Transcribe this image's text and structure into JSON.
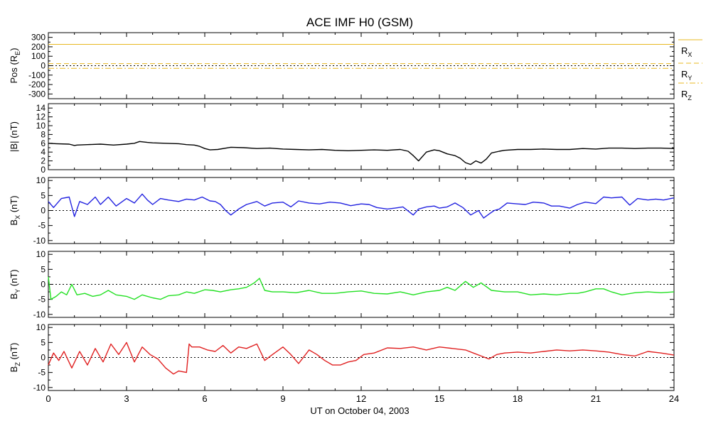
{
  "figure": {
    "title": "ACE IMF H0 (GSM)",
    "xlabel": "UT on October 04, 2003"
  },
  "chart_data": [
    {
      "type": "line",
      "panel": "position",
      "ylabel": "Pos (R",
      "ylabel_sub": "E",
      "ylabel_tail": ")",
      "ylim": [
        -350,
        350
      ],
      "yticks": [
        -300,
        -200,
        -100,
        0,
        100,
        200,
        300
      ],
      "xlim": [
        0,
        24
      ],
      "series": [
        {
          "name": "R",
          "sub": "X",
          "color": "#e8b820",
          "dash": "solid",
          "x": [
            0,
            24
          ],
          "values": [
            226,
            226
          ]
        },
        {
          "name": "R",
          "sub": "Y",
          "color": "#e8b820",
          "dash": "dashed",
          "x": [
            0,
            24
          ],
          "values": [
            22,
            22
          ]
        },
        {
          "name": "R",
          "sub": "Z",
          "color": "#e8b820",
          "dash": "dashdot",
          "x": [
            0,
            24
          ],
          "values": [
            -28,
            -28
          ]
        }
      ],
      "zero_line": true,
      "legend": "right"
    },
    {
      "type": "line",
      "panel": "Bmag",
      "ylabel": "|B| (nT)",
      "ylim": [
        0,
        15
      ],
      "yticks": [
        0,
        2,
        4,
        6,
        8,
        10,
        12,
        14
      ],
      "xlim": [
        0,
        24
      ],
      "series": [
        {
          "color": "#000000",
          "x": [
            0,
            0.3,
            0.8,
            1.0,
            1.1,
            1.5,
            2.0,
            2.5,
            3.0,
            3.3,
            3.5,
            3.8,
            4.0,
            4.5,
            5.0,
            5.3,
            5.6,
            5.8,
            6.0,
            6.2,
            6.5,
            7.0,
            7.5,
            8.0,
            8.5,
            9.0,
            9.5,
            10.0,
            10.5,
            11.0,
            11.5,
            12.0,
            12.5,
            13.0,
            13.5,
            13.8,
            14.0,
            14.2,
            14.5,
            14.8,
            15.0,
            15.3,
            15.6,
            15.8,
            16.0,
            16.2,
            16.4,
            16.6,
            16.8,
            17.0,
            17.3,
            17.5,
            18.0,
            18.5,
            19.0,
            19.5,
            20.0,
            20.5,
            21.0,
            21.5,
            22.0,
            22.5,
            23.0,
            23.5,
            24.0
          ],
          "values": [
            6.0,
            5.9,
            5.8,
            5.5,
            5.6,
            5.7,
            5.8,
            5.6,
            5.8,
            6.0,
            6.4,
            6.2,
            6.1,
            6.0,
            5.9,
            5.7,
            5.6,
            5.3,
            4.8,
            4.5,
            4.6,
            5.1,
            5.0,
            4.8,
            4.9,
            4.7,
            4.6,
            4.5,
            4.6,
            4.4,
            4.3,
            4.4,
            4.5,
            4.4,
            4.6,
            4.2,
            3.2,
            2.0,
            4.0,
            4.5,
            4.3,
            3.6,
            3.2,
            2.6,
            1.6,
            1.2,
            2.0,
            1.5,
            2.4,
            3.8,
            4.2,
            4.4,
            4.6,
            4.6,
            4.7,
            4.6,
            4.6,
            4.8,
            4.7,
            4.9,
            4.9,
            4.8,
            4.9,
            4.9,
            4.8
          ]
        }
      ]
    },
    {
      "type": "line",
      "panel": "Bx",
      "ylabel": "B",
      "ylabel_sub": "X",
      "ylabel_tail": " (nT)",
      "ylim": [
        -11,
        11
      ],
      "yticks": [
        -10,
        -5,
        0,
        5,
        10
      ],
      "xlim": [
        0,
        24
      ],
      "series": [
        {
          "color": "#2222e0",
          "x": [
            0,
            0.2,
            0.5,
            0.8,
            1.0,
            1.2,
            1.5,
            1.8,
            2.0,
            2.3,
            2.6,
            3.0,
            3.3,
            3.6,
            3.8,
            4.0,
            4.3,
            4.6,
            5.0,
            5.3,
            5.6,
            5.9,
            6.2,
            6.4,
            6.6,
            6.8,
            7.0,
            7.3,
            7.6,
            8.0,
            8.3,
            8.6,
            9.0,
            9.3,
            9.6,
            10.0,
            10.4,
            10.8,
            11.2,
            11.6,
            12.0,
            12.3,
            12.6,
            13.0,
            13.3,
            13.6,
            14.0,
            14.2,
            14.5,
            14.8,
            15.0,
            15.3,
            15.6,
            15.9,
            16.2,
            16.5,
            16.7,
            16.9,
            17.1,
            17.3,
            17.6,
            18.0,
            18.3,
            18.6,
            19.0,
            19.3,
            19.6,
            20.0,
            20.3,
            20.6,
            21.0,
            21.3,
            21.6,
            22.0,
            22.3,
            22.6,
            23.0,
            23.3,
            23.6,
            24.0
          ],
          "values": [
            3.0,
            1.0,
            4.0,
            4.5,
            -2.0,
            3.0,
            2.0,
            4.5,
            2.0,
            4.5,
            1.5,
            4.0,
            2.5,
            5.5,
            3.5,
            2.0,
            4.0,
            3.5,
            3.0,
            3.8,
            3.5,
            4.5,
            3.2,
            3.0,
            2.0,
            0.0,
            -1.5,
            0.5,
            2.0,
            3.0,
            1.5,
            2.5,
            2.8,
            1.2,
            3.2,
            2.5,
            2.2,
            2.8,
            2.5,
            1.6,
            2.2,
            2.0,
            1.0,
            0.5,
            0.8,
            1.2,
            -1.5,
            0.5,
            1.2,
            1.5,
            0.8,
            1.2,
            2.5,
            1.0,
            -1.5,
            0.0,
            -2.5,
            -1.2,
            0.0,
            0.5,
            2.5,
            2.2,
            2.0,
            2.8,
            2.5,
            1.5,
            1.5,
            0.8,
            2.0,
            2.8,
            2.3,
            4.5,
            4.2,
            4.5,
            1.8,
            4.0,
            3.5,
            3.8,
            3.5,
            4.2
          ]
        }
      ],
      "zero_line": true
    },
    {
      "type": "line",
      "panel": "By",
      "ylabel": "B",
      "ylabel_sub": "Y",
      "ylabel_tail": " (nT)",
      "ylim": [
        -11,
        11
      ],
      "yticks": [
        -10,
        -5,
        0,
        5,
        10
      ],
      "xlim": [
        0,
        24
      ],
      "series": [
        {
          "color": "#22e022",
          "x": [
            0,
            0.1,
            0.3,
            0.5,
            0.7,
            0.9,
            1.1,
            1.4,
            1.7,
            2.0,
            2.3,
            2.6,
            3.0,
            3.3,
            3.6,
            4.0,
            4.3,
            4.6,
            5.0,
            5.3,
            5.6,
            6.0,
            6.3,
            6.6,
            7.0,
            7.3,
            7.6,
            7.9,
            8.1,
            8.3,
            8.6,
            9.0,
            9.5,
            10.0,
            10.5,
            11.0,
            11.5,
            12.0,
            12.5,
            13.0,
            13.5,
            14.0,
            14.5,
            15.0,
            15.3,
            15.6,
            16.0,
            16.3,
            16.6,
            17.0,
            17.5,
            18.0,
            18.5,
            19.0,
            19.5,
            20.0,
            20.3,
            20.6,
            21.0,
            21.3,
            21.6,
            22.0,
            22.5,
            23.0,
            23.5,
            24.0
          ],
          "values": [
            2.5,
            -5.0,
            -4.0,
            -2.5,
            -3.5,
            0.0,
            -3.5,
            -3.0,
            -4.0,
            -3.5,
            -2.0,
            -3.5,
            -4.0,
            -5.0,
            -3.5,
            -4.5,
            -5.0,
            -3.8,
            -3.5,
            -2.5,
            -3.0,
            -1.8,
            -2.0,
            -2.5,
            -1.8,
            -1.5,
            -1.0,
            0.5,
            2.0,
            -2.0,
            -2.5,
            -2.5,
            -2.8,
            -2.0,
            -3.0,
            -3.0,
            -2.5,
            -2.2,
            -3.0,
            -3.2,
            -2.5,
            -3.5,
            -2.5,
            -2.0,
            -1.0,
            -2.0,
            1.0,
            -1.0,
            0.5,
            -2.0,
            -2.5,
            -2.5,
            -3.5,
            -3.2,
            -3.5,
            -3.0,
            -3.0,
            -2.5,
            -1.5,
            -1.5,
            -2.5,
            -3.5,
            -2.8,
            -2.5,
            -2.8,
            -2.5
          ]
        }
      ],
      "zero_line": true
    },
    {
      "type": "line",
      "panel": "Bz",
      "ylabel": "B",
      "ylabel_sub": "Z",
      "ylabel_tail": " (nT)",
      "ylim": [
        -11,
        11
      ],
      "yticks": [
        -10,
        -5,
        0,
        5,
        10
      ],
      "xlim": [
        0,
        24
      ],
      "series": [
        {
          "color": "#e02020",
          "x": [
            0,
            0.2,
            0.4,
            0.6,
            0.9,
            1.2,
            1.5,
            1.8,
            2.1,
            2.4,
            2.7,
            3.0,
            3.3,
            3.6,
            3.9,
            4.2,
            4.5,
            4.8,
            5.0,
            5.3,
            5.4,
            5.5,
            5.8,
            6.1,
            6.4,
            6.7,
            7.0,
            7.3,
            7.6,
            8.0,
            8.3,
            8.6,
            9.0,
            9.3,
            9.6,
            10.0,
            10.3,
            10.6,
            10.9,
            11.2,
            11.5,
            11.8,
            12.1,
            12.5,
            13.0,
            13.5,
            14.0,
            14.5,
            15.0,
            15.5,
            16.0,
            16.3,
            16.6,
            16.9,
            17.2,
            17.5,
            18.0,
            18.5,
            19.0,
            19.5,
            20.0,
            20.5,
            21.0,
            21.5,
            22.0,
            22.5,
            23.0,
            23.5,
            24.0
          ],
          "values": [
            -2.5,
            1.5,
            -1.0,
            2.0,
            -3.5,
            2.0,
            -2.5,
            3.0,
            -1.5,
            4.5,
            1.0,
            5.0,
            -1.5,
            3.5,
            1.0,
            -0.5,
            -3.5,
            -5.5,
            -4.5,
            -5.0,
            4.5,
            3.5,
            3.5,
            2.5,
            2.0,
            4.0,
            1.5,
            3.5,
            3.0,
            4.5,
            -1.0,
            1.0,
            3.5,
            1.0,
            -2.0,
            2.5,
            1.0,
            -1.0,
            -2.5,
            -2.5,
            -1.5,
            -1.0,
            1.0,
            1.5,
            3.2,
            3.0,
            3.5,
            2.5,
            3.5,
            3.0,
            2.5,
            1.5,
            0.5,
            -0.5,
            1.0,
            1.5,
            1.8,
            1.5,
            2.0,
            2.5,
            2.2,
            2.5,
            2.2,
            1.8,
            1.0,
            0.5,
            2.0,
            1.5,
            0.8
          ]
        }
      ],
      "zero_line": true
    }
  ],
  "xaxis": {
    "ticks": [
      0,
      3,
      6,
      9,
      12,
      15,
      18,
      21,
      24
    ],
    "tick_labels": [
      "0",
      "3",
      "6",
      "9",
      "12",
      "15",
      "18",
      "21",
      "24"
    ]
  }
}
